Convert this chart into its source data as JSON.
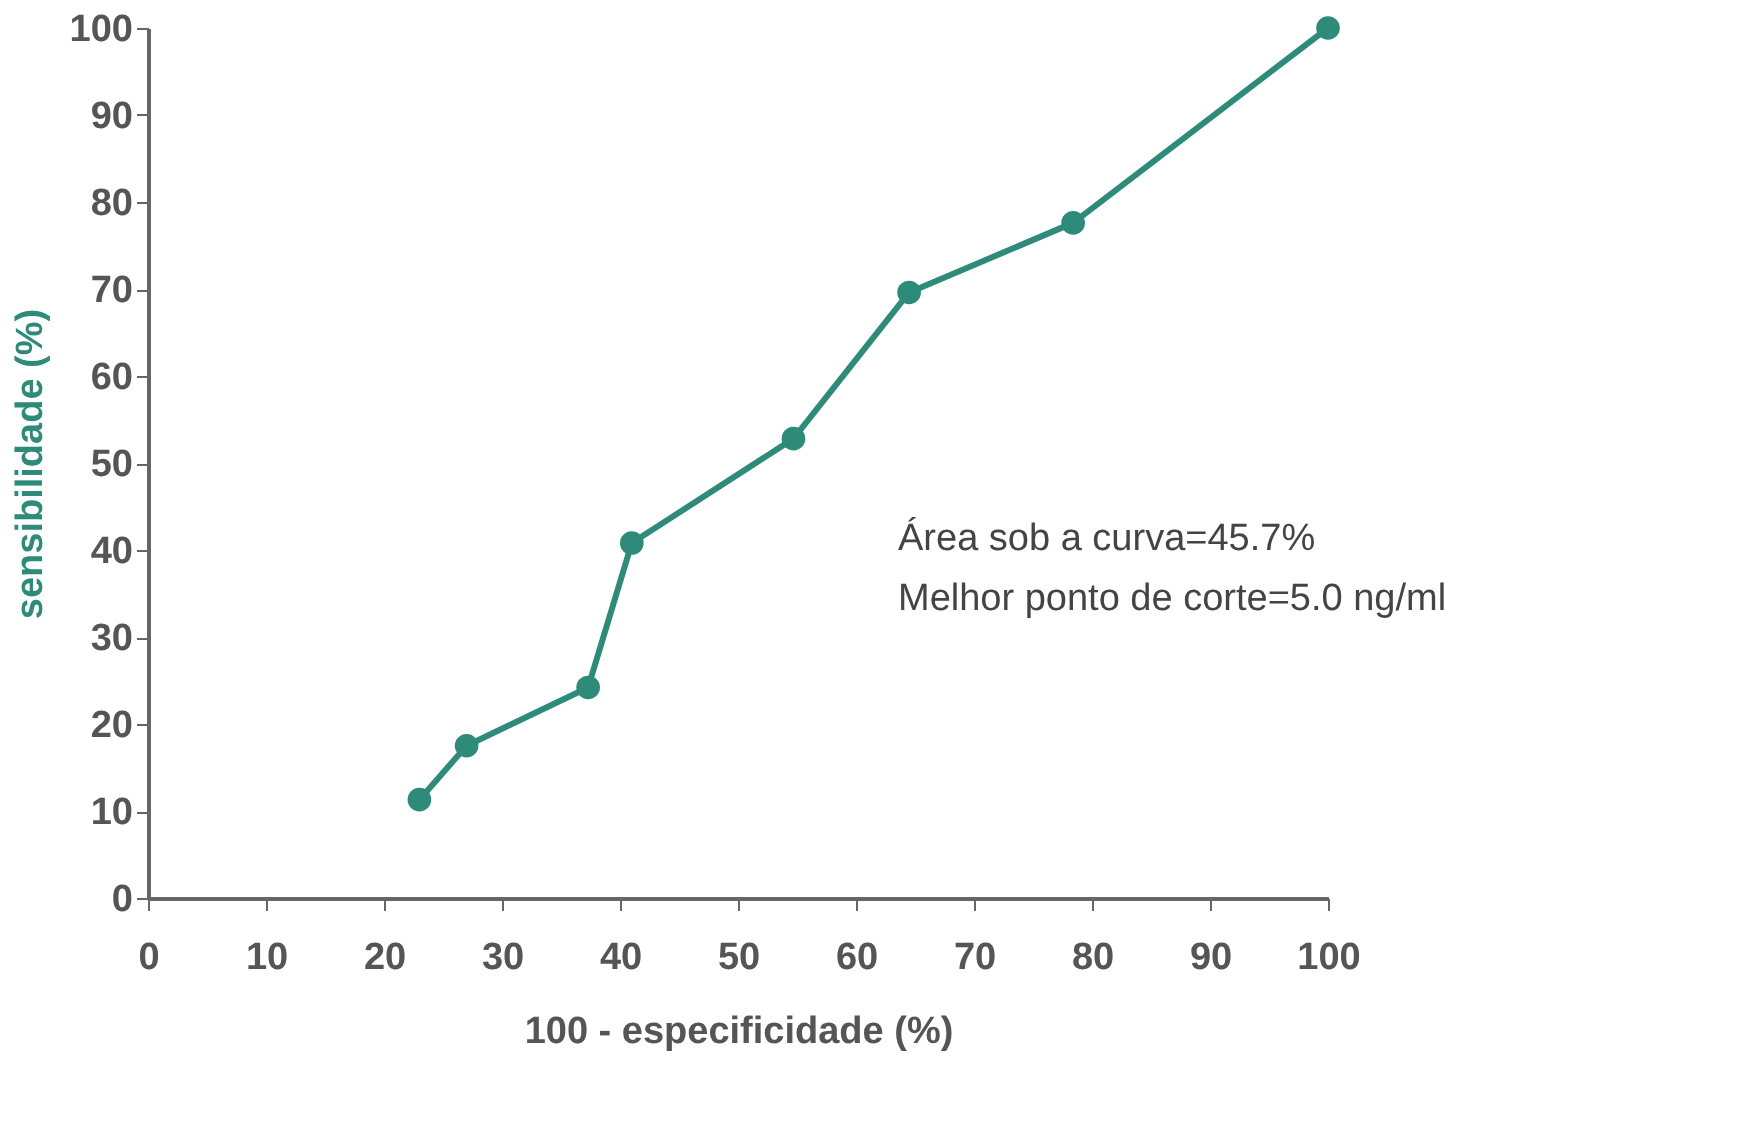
{
  "chart_data": {
    "type": "line",
    "xlabel": "100 - especificidade (%)",
    "ylabel": "sensibilidade (%)",
    "x": [
      23,
      27,
      37.3,
      41,
      54.7,
      64.5,
      78.4,
      100
    ],
    "series": [
      {
        "color": "#2e8b7a",
        "values": [
          11.3,
          17.5,
          24.2,
          40.8,
          52.8,
          69.6,
          77.6,
          100
        ]
      }
    ],
    "xlim": [
      0,
      100
    ],
    "xticks": [
      0,
      10,
      20,
      30,
      40,
      50,
      60,
      70,
      80,
      90,
      100
    ],
    "ylim": [
      0,
      100
    ],
    "yticks": [
      0,
      10,
      20,
      30,
      40,
      50,
      60,
      70,
      80,
      90,
      100
    ],
    "marker": "circle",
    "grid": false,
    "annotations": [
      "Área sob a curva=45.7%",
      "Melhor ponto de corte=5.0 ng/ml"
    ]
  }
}
